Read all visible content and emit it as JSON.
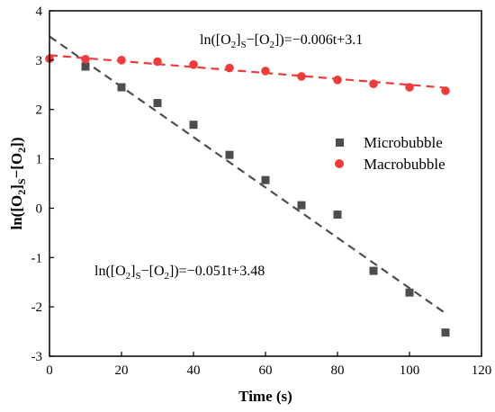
{
  "chart_data": {
    "type": "scatter",
    "xlabel": "Time (s)",
    "ylabel": "ln([O2]S−[O2])",
    "xlim": [
      0,
      120
    ],
    "ylim": [
      -3,
      4
    ],
    "x_ticks": [
      "0",
      "20",
      "40",
      "60",
      "80",
      "100",
      "120"
    ],
    "y_ticks": [
      "-3",
      "-2",
      "-1",
      "0",
      "1",
      "2",
      "3",
      "4"
    ],
    "grid": false,
    "legend_position": "center-right",
    "series": [
      {
        "name": "Microbubble",
        "marker": "square",
        "color": "#4d4d4d",
        "x": [
          10,
          20,
          30,
          40,
          50,
          60,
          70,
          80,
          90,
          100,
          110
        ],
        "y": [
          2.87,
          2.45,
          2.13,
          1.69,
          1.08,
          0.57,
          0.06,
          -0.13,
          -1.27,
          -1.71,
          -2.52
        ],
        "fit": {
          "slope": -0.051,
          "intercept": 3.48,
          "x_range": [
            0,
            110
          ],
          "color": "#4d4d4d"
        }
      },
      {
        "name": "Macrobubble",
        "marker": "circle",
        "color": "#ee3b3b",
        "x": [
          0,
          10,
          20,
          30,
          40,
          50,
          60,
          70,
          80,
          90,
          100,
          110
        ],
        "y": [
          3.03,
          3.02,
          3.0,
          2.97,
          2.91,
          2.84,
          2.78,
          2.67,
          2.6,
          2.52,
          2.45,
          2.38
        ],
        "fit": {
          "slope": -0.006,
          "intercept": 3.1,
          "x_range": [
            0,
            110
          ],
          "color": "#ee3b3b"
        }
      }
    ],
    "annotations": {
      "macro_equation": {
        "pre": "ln([O",
        "sub1": "2",
        "mid1": "]",
        "sub2": "S",
        "mid2": "−[O",
        "sub3": "2",
        "post": "])=−0.006t+3.1"
      },
      "micro_equation": {
        "pre": "ln([O",
        "sub1": "2",
        "mid1": "]",
        "sub2": "S",
        "mid2": "−[O",
        "sub3": "2",
        "post": "])=−0.051t+3.48"
      }
    },
    "ylabel_parts": {
      "pre": "ln([O",
      "sub1": "2",
      "mid1": "]",
      "sub2": "S",
      "mid2": "−[O",
      "sub3": "2",
      "post": "])"
    }
  }
}
